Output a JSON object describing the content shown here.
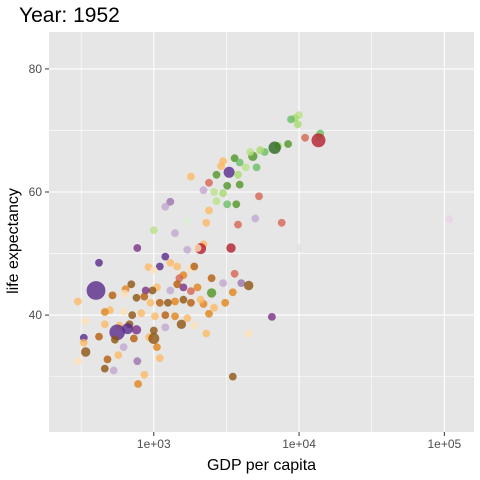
{
  "chart_data": {
    "type": "scatter",
    "title": "Year: 1952",
    "xlabel": "GDP per capita",
    "ylabel": "life expectancy",
    "x_scale": "log10",
    "xlim": [
      190,
      160000
    ],
    "ylim": [
      21,
      86
    ],
    "x_ticks": [
      {
        "value": 1000,
        "label": "1e+03"
      },
      {
        "value": 10000,
        "label": "1e+04"
      },
      {
        "value": 100000,
        "label": "1e+05"
      }
    ],
    "y_ticks": [
      {
        "value": 40,
        "label": "40"
      },
      {
        "value": 60,
        "label": "60"
      },
      {
        "value": 80,
        "label": "80"
      }
    ],
    "grid": true,
    "legend": "none",
    "colors": {
      "panel_bg": "#e6e6e6",
      "grid": "#ffffff",
      "ticks": "#333333"
    },
    "points": [
      {
        "x": 10000,
        "y": 72.5,
        "size": 5,
        "color": "#b8e186"
      },
      {
        "x": 9400,
        "y": 72.0,
        "size": 5,
        "color": "#a6d96a"
      },
      {
        "x": 8800,
        "y": 71.8,
        "size": 5,
        "color": "#66bd63"
      },
      {
        "x": 9800,
        "y": 71.0,
        "size": 5,
        "color": "#a6d96a"
      },
      {
        "x": 14000,
        "y": 69.5,
        "size": 5,
        "color": "#66bd63"
      },
      {
        "x": 13800,
        "y": 69.0,
        "size": 5,
        "color": "#b8e186"
      },
      {
        "x": 13600,
        "y": 68.4,
        "size": 9,
        "color": "#b2182b"
      },
      {
        "x": 11000,
        "y": 68.8,
        "size": 5,
        "color": "#d6604d"
      },
      {
        "x": 8400,
        "y": 67.8,
        "size": 5,
        "color": "#4d9221"
      },
      {
        "x": 7200,
        "y": 67.5,
        "size": 5,
        "color": "#a6d96a"
      },
      {
        "x": 6800,
        "y": 67.2,
        "size": 8,
        "color": "#276419"
      },
      {
        "x": 5800,
        "y": 66.5,
        "size": 5,
        "color": "#66bd63"
      },
      {
        "x": 5400,
        "y": 66.8,
        "size": 5,
        "color": "#a6d96a"
      },
      {
        "x": 4800,
        "y": 65.8,
        "size": 6,
        "color": "#4d9221"
      },
      {
        "x": 4600,
        "y": 66.5,
        "size": 5,
        "color": "#b8e186"
      },
      {
        "x": 3600,
        "y": 65.5,
        "size": 5,
        "color": "#4d9221"
      },
      {
        "x": 3900,
        "y": 64.8,
        "size": 5,
        "color": "#66bd63"
      },
      {
        "x": 4300,
        "y": 64.0,
        "size": 5,
        "color": "#b8e186"
      },
      {
        "x": 5100,
        "y": 64.0,
        "size": 5,
        "color": "#66bd63"
      },
      {
        "x": 3000,
        "y": 65.0,
        "size": 5,
        "color": "#fdb863"
      },
      {
        "x": 2900,
        "y": 64.2,
        "size": 5,
        "color": "#fdb863"
      },
      {
        "x": 3300,
        "y": 63.2,
        "size": 7,
        "color": "#542788"
      },
      {
        "x": 3800,
        "y": 62.8,
        "size": 5,
        "color": "#a6d96a"
      },
      {
        "x": 2700,
        "y": 62.8,
        "size": 5,
        "color": "#4d9221"
      },
      {
        "x": 3200,
        "y": 61.0,
        "size": 5,
        "color": "#4d9221"
      },
      {
        "x": 3900,
        "y": 61.2,
        "size": 5,
        "color": "#4d9221"
      },
      {
        "x": 5300,
        "y": 59.3,
        "size": 5,
        "color": "#d6604d"
      },
      {
        "x": 1800,
        "y": 62.5,
        "size": 5,
        "color": "#fdb863"
      },
      {
        "x": 2400,
        "y": 61.5,
        "size": 5,
        "color": "#d6604d"
      },
      {
        "x": 2600,
        "y": 60.0,
        "size": 5,
        "color": "#b8e186"
      },
      {
        "x": 2200,
        "y": 60.3,
        "size": 5,
        "color": "#c2a5cf"
      },
      {
        "x": 3000,
        "y": 59.8,
        "size": 5,
        "color": "#a6d96a"
      },
      {
        "x": 2700,
        "y": 58.5,
        "size": 5,
        "color": "#b8e186"
      },
      {
        "x": 3200,
        "y": 58.0,
        "size": 5,
        "color": "#66bd63"
      },
      {
        "x": 3700,
        "y": 58.0,
        "size": 5,
        "color": "#4d9221"
      },
      {
        "x": 2400,
        "y": 57.0,
        "size": 5,
        "color": "#fdb863"
      },
      {
        "x": 1300,
        "y": 58.4,
        "size": 5,
        "color": "#9970ab"
      },
      {
        "x": 1200,
        "y": 57.6,
        "size": 5,
        "color": "#c2a5cf"
      },
      {
        "x": 1700,
        "y": 55.3,
        "size": 5,
        "color": "#d9f0d3"
      },
      {
        "x": 2300,
        "y": 55.0,
        "size": 5,
        "color": "#fdb863"
      },
      {
        "x": 3800,
        "y": 54.7,
        "size": 5,
        "color": "#d6604d"
      },
      {
        "x": 5000,
        "y": 55.7,
        "size": 5,
        "color": "#c2a5cf"
      },
      {
        "x": 7600,
        "y": 55.0,
        "size": 5,
        "color": "#d6604d"
      },
      {
        "x": 108000,
        "y": 55.6,
        "size": 5,
        "color": "#e7d4e8"
      },
      {
        "x": 1000,
        "y": 53.8,
        "size": 5,
        "color": "#b8e186"
      },
      {
        "x": 1400,
        "y": 53.3,
        "size": 5,
        "color": "#c2a5cf"
      },
      {
        "x": 2200,
        "y": 51.5,
        "size": 5,
        "color": "#fdb863"
      },
      {
        "x": 2100,
        "y": 50.8,
        "size": 7,
        "color": "#b2182b"
      },
      {
        "x": 2000,
        "y": 50.9,
        "size": 5,
        "color": "#fee0b6"
      },
      {
        "x": 3400,
        "y": 50.9,
        "size": 6,
        "color": "#b2182b"
      },
      {
        "x": 9900,
        "y": 50.9,
        "size": 5,
        "color": "#e0e0e0"
      },
      {
        "x": 770,
        "y": 50.9,
        "size": 5,
        "color": "#762a83"
      },
      {
        "x": 1700,
        "y": 50.6,
        "size": 5,
        "color": "#c2a5cf"
      },
      {
        "x": 1200,
        "y": 49.5,
        "size": 5,
        "color": "#542788"
      },
      {
        "x": 1300,
        "y": 48.5,
        "size": 5,
        "color": "#fdb863"
      },
      {
        "x": 1100,
        "y": 47.9,
        "size": 5,
        "color": "#542788"
      },
      {
        "x": 1450,
        "y": 47.9,
        "size": 5,
        "color": "#fdb863"
      },
      {
        "x": 1800,
        "y": 47.5,
        "size": 5,
        "color": "#fee0b6"
      },
      {
        "x": 1900,
        "y": 47.9,
        "size": 5,
        "color": "#b35806"
      },
      {
        "x": 920,
        "y": 47.8,
        "size": 5,
        "color": "#fdb863"
      },
      {
        "x": 1000,
        "y": 47.3,
        "size": 5,
        "color": "#fee0b6"
      },
      {
        "x": 420,
        "y": 48.5,
        "size": 5,
        "color": "#542788"
      },
      {
        "x": 1600,
        "y": 46.5,
        "size": 5,
        "color": "#e08214"
      },
      {
        "x": 1500,
        "y": 46.0,
        "size": 5,
        "color": "#d6604d"
      },
      {
        "x": 2500,
        "y": 46.0,
        "size": 5,
        "color": "#b35806"
      },
      {
        "x": 3600,
        "y": 46.7,
        "size": 5,
        "color": "#d6604d"
      },
      {
        "x": 4000,
        "y": 45.2,
        "size": 5,
        "color": "#9970ab"
      },
      {
        "x": 3000,
        "y": 45.2,
        "size": 5,
        "color": "#c2a5cf"
      },
      {
        "x": 4500,
        "y": 44.8,
        "size": 6,
        "color": "#8c510a"
      },
      {
        "x": 2000,
        "y": 44.5,
        "size": 5,
        "color": "#e08214"
      },
      {
        "x": 3500,
        "y": 43.7,
        "size": 5,
        "color": "#e08214"
      },
      {
        "x": 2500,
        "y": 43.6,
        "size": 6,
        "color": "#4d9221"
      },
      {
        "x": 1800,
        "y": 43.9,
        "size": 5,
        "color": "#d6604d"
      },
      {
        "x": 1600,
        "y": 44.5,
        "size": 5,
        "color": "#762a83"
      },
      {
        "x": 1450,
        "y": 45.0,
        "size": 5,
        "color": "#b35806"
      },
      {
        "x": 1300,
        "y": 44.0,
        "size": 5,
        "color": "#c2a5cf"
      },
      {
        "x": 1050,
        "y": 44.5,
        "size": 5,
        "color": "#fdb863"
      },
      {
        "x": 980,
        "y": 44.0,
        "size": 5,
        "color": "#8c510a"
      },
      {
        "x": 880,
        "y": 44.0,
        "size": 5,
        "color": "#762a83"
      },
      {
        "x": 400,
        "y": 44.0,
        "size": 12,
        "color": "#542788"
      },
      {
        "x": 640,
        "y": 44.2,
        "size": 5,
        "color": "#e08214"
      },
      {
        "x": 700,
        "y": 45.0,
        "size": 5,
        "color": "#8c510a"
      },
      {
        "x": 2600,
        "y": 41.2,
        "size": 5,
        "color": "#fdb863"
      },
      {
        "x": 3100,
        "y": 42.0,
        "size": 5,
        "color": "#e08214"
      },
      {
        "x": 2200,
        "y": 41.8,
        "size": 5,
        "color": "#e08214"
      },
      {
        "x": 2100,
        "y": 42.5,
        "size": 5,
        "color": "#fdb863"
      },
      {
        "x": 1800,
        "y": 42.0,
        "size": 5,
        "color": "#b35806"
      },
      {
        "x": 1600,
        "y": 42.5,
        "size": 5,
        "color": "#8c510a"
      },
      {
        "x": 1400,
        "y": 42.2,
        "size": 5,
        "color": "#e08214"
      },
      {
        "x": 1250,
        "y": 42.0,
        "size": 5,
        "color": "#8c510a"
      },
      {
        "x": 1100,
        "y": 42.0,
        "size": 5,
        "color": "#b35806"
      },
      {
        "x": 950,
        "y": 42.0,
        "size": 5,
        "color": "#fdb863"
      },
      {
        "x": 860,
        "y": 43.0,
        "size": 5,
        "color": "#b35806"
      },
      {
        "x": 760,
        "y": 42.8,
        "size": 5,
        "color": "#8c510a"
      },
      {
        "x": 630,
        "y": 43.5,
        "size": 5,
        "color": "#fee0b6"
      },
      {
        "x": 520,
        "y": 43.2,
        "size": 5,
        "color": "#b35806"
      },
      {
        "x": 500,
        "y": 40.8,
        "size": 5,
        "color": "#fdb863"
      },
      {
        "x": 300,
        "y": 42.2,
        "size": 5,
        "color": "#fdb863"
      },
      {
        "x": 460,
        "y": 40.5,
        "size": 5,
        "color": "#e08214"
      },
      {
        "x": 620,
        "y": 40.6,
        "size": 5,
        "color": "#fee0b6"
      },
      {
        "x": 710,
        "y": 40.0,
        "size": 5,
        "color": "#8c510a"
      },
      {
        "x": 820,
        "y": 40.3,
        "size": 5,
        "color": "#fdb863"
      },
      {
        "x": 1020,
        "y": 39.8,
        "size": 5,
        "color": "#fdb863"
      },
      {
        "x": 1200,
        "y": 40.0,
        "size": 5,
        "color": "#b35806"
      },
      {
        "x": 1400,
        "y": 39.8,
        "size": 5,
        "color": "#e08214"
      },
      {
        "x": 1700,
        "y": 39.5,
        "size": 5,
        "color": "#fdb863"
      },
      {
        "x": 2400,
        "y": 40.2,
        "size": 5,
        "color": "#e08214"
      },
      {
        "x": 6500,
        "y": 39.7,
        "size": 5,
        "color": "#762a83"
      },
      {
        "x": 340,
        "y": 39.0,
        "size": 5,
        "color": "#fee0b6"
      },
      {
        "x": 460,
        "y": 38.5,
        "size": 5,
        "color": "#fdb863"
      },
      {
        "x": 580,
        "y": 38.3,
        "size": 5,
        "color": "#fdb863"
      },
      {
        "x": 680,
        "y": 38.5,
        "size": 5,
        "color": "#8c510a"
      },
      {
        "x": 660,
        "y": 37.8,
        "size": 7,
        "color": "#542788"
      },
      {
        "x": 760,
        "y": 37.6,
        "size": 6,
        "color": "#762a83"
      },
      {
        "x": 1000,
        "y": 37.5,
        "size": 5,
        "color": "#8c510a"
      },
      {
        "x": 1200,
        "y": 38.0,
        "size": 5,
        "color": "#c2a5cf"
      },
      {
        "x": 1550,
        "y": 38.5,
        "size": 6,
        "color": "#8c510a"
      },
      {
        "x": 1900,
        "y": 38.3,
        "size": 5,
        "color": "#fee0b6"
      },
      {
        "x": 2300,
        "y": 37.0,
        "size": 5,
        "color": "#fdb863"
      },
      {
        "x": 4500,
        "y": 37.0,
        "size": 5,
        "color": "#fee0b6"
      },
      {
        "x": 560,
        "y": 37.2,
        "size": 10,
        "color": "#542788"
      },
      {
        "x": 330,
        "y": 36.3,
        "size": 5,
        "color": "#542788"
      },
      {
        "x": 420,
        "y": 36.5,
        "size": 5,
        "color": "#b35806"
      },
      {
        "x": 540,
        "y": 36.0,
        "size": 5,
        "color": "#8c510a"
      },
      {
        "x": 730,
        "y": 36.2,
        "size": 5,
        "color": "#b35806"
      },
      {
        "x": 930,
        "y": 36.4,
        "size": 5,
        "color": "#fdb863"
      },
      {
        "x": 1000,
        "y": 36.2,
        "size": 7,
        "color": "#8c510a"
      },
      {
        "x": 330,
        "y": 35.5,
        "size": 5,
        "color": "#fdb863"
      },
      {
        "x": 620,
        "y": 34.8,
        "size": 5,
        "color": "#c2a5cf"
      },
      {
        "x": 1050,
        "y": 34.8,
        "size": 5,
        "color": "#e08214"
      },
      {
        "x": 340,
        "y": 34.0,
        "size": 6,
        "color": "#8c510a"
      },
      {
        "x": 570,
        "y": 33.5,
        "size": 5,
        "color": "#fdb863"
      },
      {
        "x": 300,
        "y": 32.5,
        "size": 5,
        "color": "#fee0b6"
      },
      {
        "x": 480,
        "y": 32.8,
        "size": 5,
        "color": "#b35806"
      },
      {
        "x": 770,
        "y": 32.5,
        "size": 5,
        "color": "#9970ab"
      },
      {
        "x": 1100,
        "y": 33.0,
        "size": 5,
        "color": "#fdb863"
      },
      {
        "x": 460,
        "y": 31.3,
        "size": 5,
        "color": "#8c510a"
      },
      {
        "x": 530,
        "y": 31.0,
        "size": 5,
        "color": "#c2a5cf"
      },
      {
        "x": 860,
        "y": 30.3,
        "size": 5,
        "color": "#fdb863"
      },
      {
        "x": 3500,
        "y": 30.0,
        "size": 5,
        "color": "#8c510a"
      },
      {
        "x": 780,
        "y": 28.8,
        "size": 5,
        "color": "#e08214"
      }
    ]
  }
}
